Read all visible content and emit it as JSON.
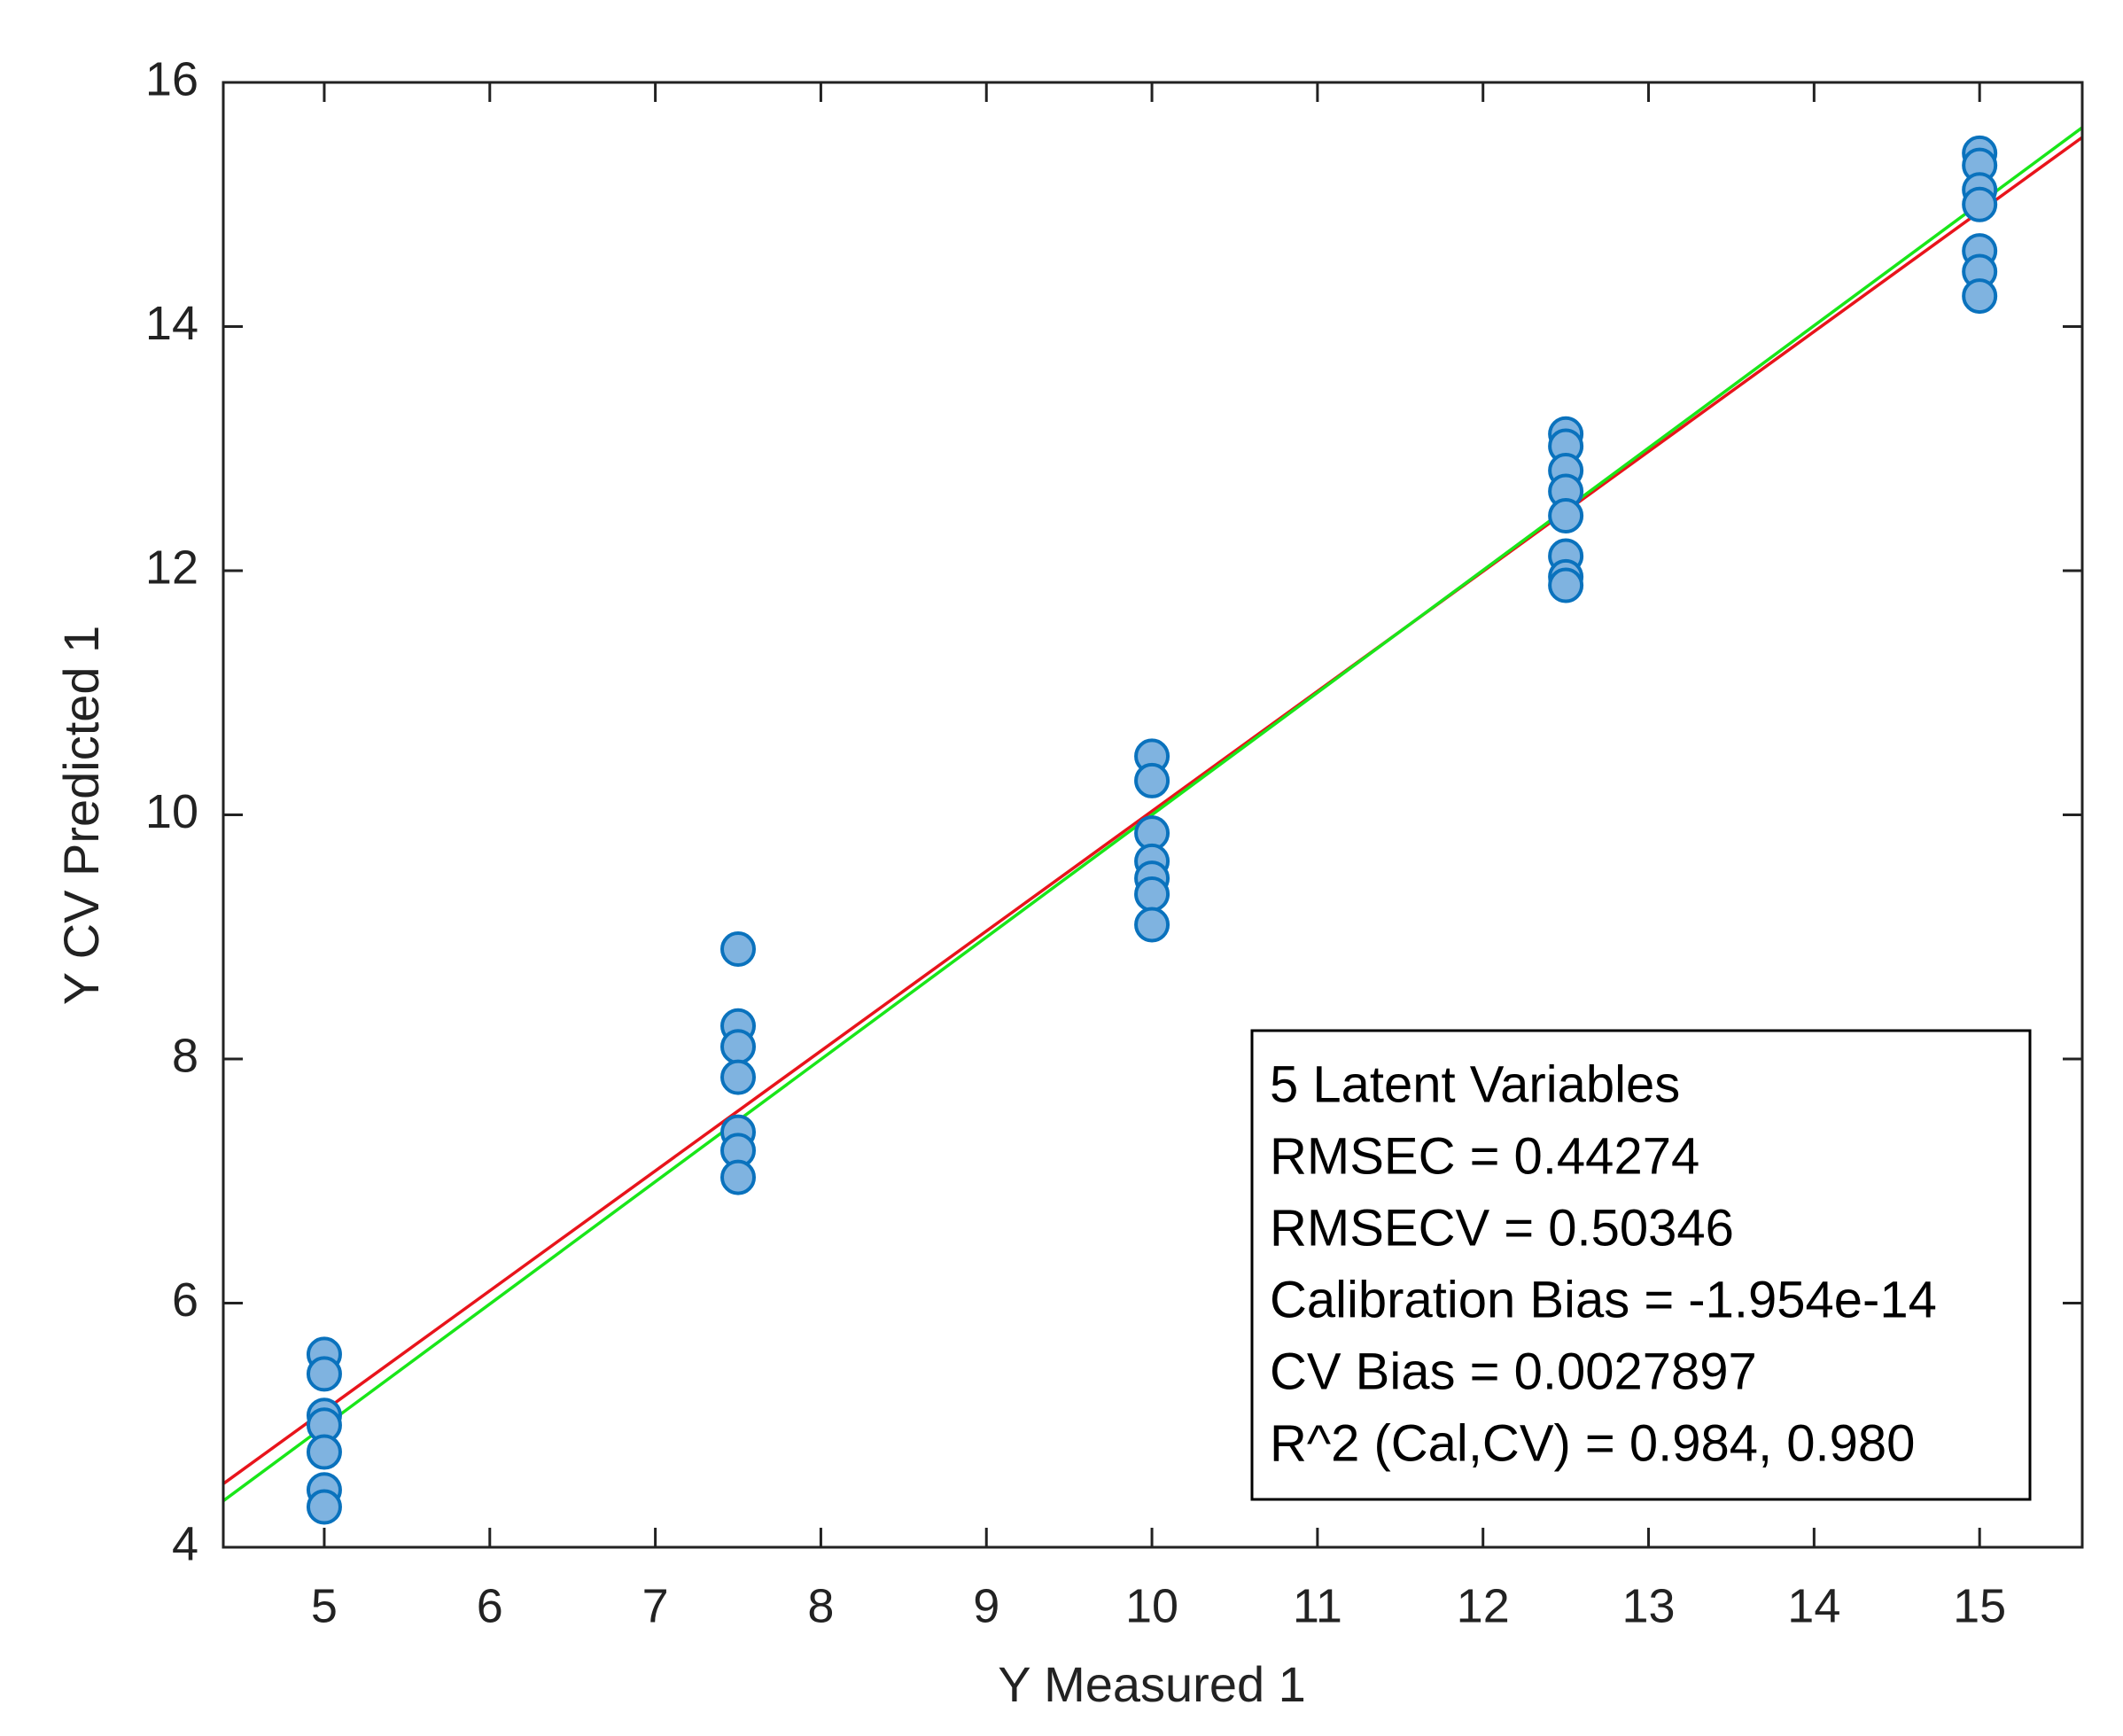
{
  "chart_data": {
    "type": "scatter",
    "xlabel": "Y Measured 1",
    "ylabel": "Y CV Predicted 1",
    "xlim": [
      4.39,
      15.62
    ],
    "ylim": [
      4,
      16
    ],
    "xticks": [
      5,
      6,
      7,
      8,
      9,
      10,
      11,
      12,
      13,
      14,
      15
    ],
    "yticks": [
      4,
      6,
      8,
      10,
      12,
      14,
      16
    ],
    "color": "#7fb3e0",
    "edge_color": "#0a72bd",
    "x": [
      5,
      5,
      5,
      5,
      5,
      5,
      5,
      7.5,
      7.5,
      7.5,
      7.5,
      7.5,
      7.5,
      7.5,
      10,
      10,
      10,
      10,
      10,
      10,
      10,
      12.5,
      12.5,
      12.5,
      12.5,
      12.5,
      12.5,
      12.5,
      12.5,
      15,
      15,
      15,
      15,
      15,
      15,
      15
    ],
    "values": [
      5.58,
      5.42,
      5.08,
      5.0,
      4.78,
      4.47,
      4.33,
      8.9,
      8.27,
      8.1,
      7.85,
      7.4,
      7.25,
      7.03,
      10.48,
      10.28,
      9.85,
      9.62,
      9.48,
      9.35,
      9.1,
      13.12,
      13.02,
      12.82,
      12.65,
      12.45,
      12.12,
      11.95,
      11.88,
      15.42,
      15.32,
      15.12,
      15.0,
      14.62,
      14.45,
      14.25
    ],
    "lines": [
      {
        "color": "#e8141b",
        "x": [
          4.39,
          15.62
        ],
        "values": [
          4.52,
          15.55
        ]
      },
      {
        "color": "#19e619",
        "x": [
          4.39,
          15.62
        ],
        "values": [
          4.38,
          15.63
        ]
      }
    ],
    "annotation": [
      "5 Latent Variables",
      "RMSEC = 0.44274",
      "RMSECV = 0.50346",
      "Calibration Bias = -1.954e-14",
      "CV Bias = 0.0027897",
      "R^2 (Cal,CV) = 0.984, 0.980"
    ]
  }
}
